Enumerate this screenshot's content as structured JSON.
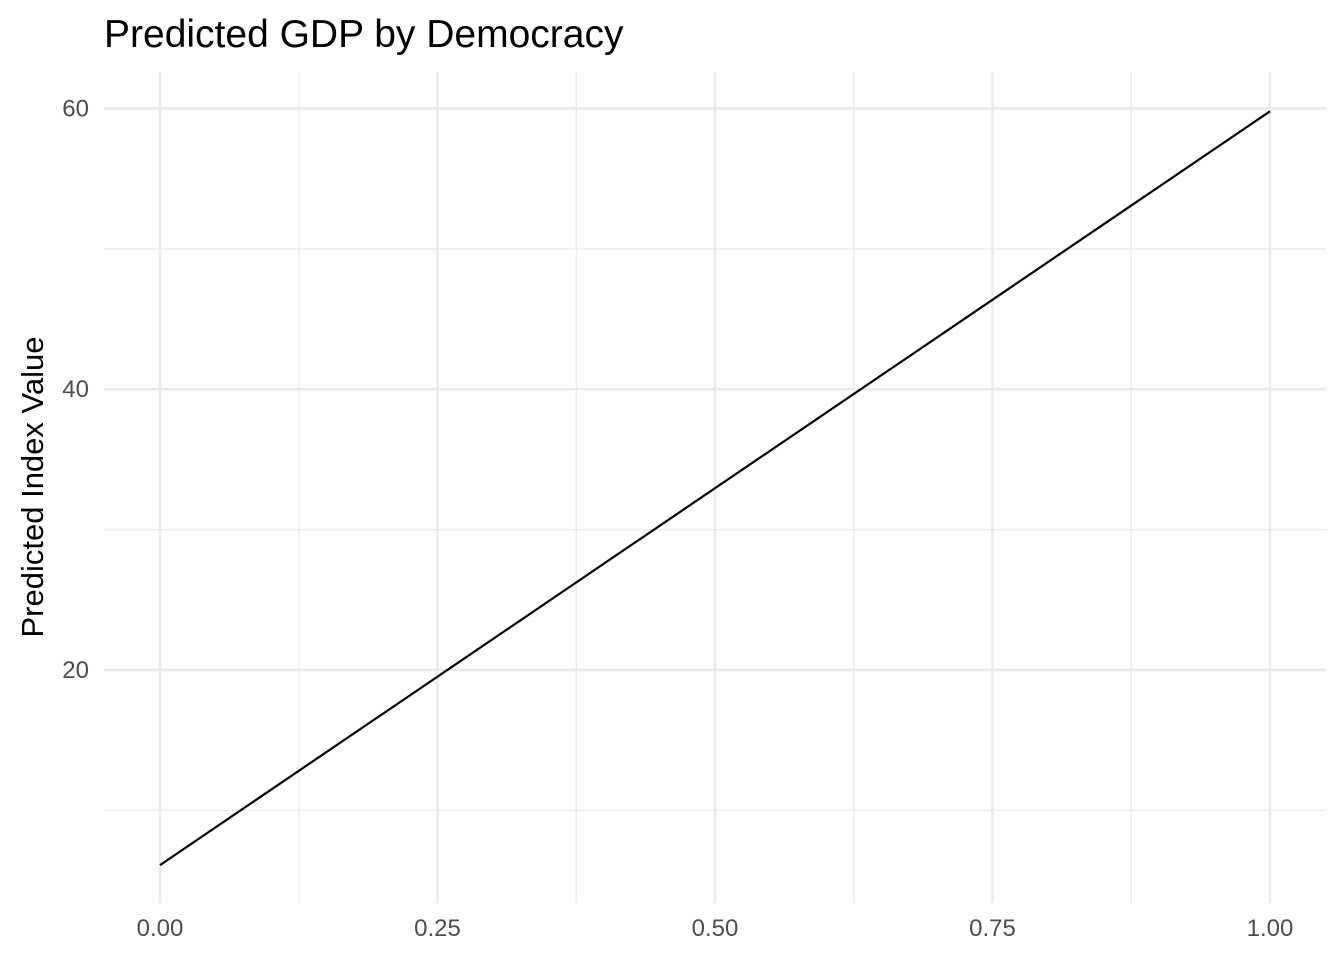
{
  "chart_data": {
    "type": "line",
    "title": "Predicted GDP by Democracy",
    "xlabel": "",
    "ylabel": "Predicted Index Value",
    "xlim": [
      0,
      1
    ],
    "ylim": [
      3.4,
      62.6
    ],
    "x_ticks": [
      0,
      0.25,
      0.5,
      0.75,
      1
    ],
    "x_tick_labels": [
      "0.00",
      "0.25",
      "0.50",
      "0.75",
      "1.00"
    ],
    "x_minor_ticks": [
      0.125,
      0.375,
      0.625,
      0.875
    ],
    "y_ticks": [
      20,
      40,
      60
    ],
    "y_tick_labels": [
      "20",
      "40",
      "60"
    ],
    "y_minor_ticks": [
      10,
      30,
      50
    ],
    "grid": true,
    "legend": "none",
    "line_color": "#000000",
    "series": [
      {
        "x": [
          0,
          1
        ],
        "y": [
          6.1,
          59.8
        ]
      }
    ]
  }
}
